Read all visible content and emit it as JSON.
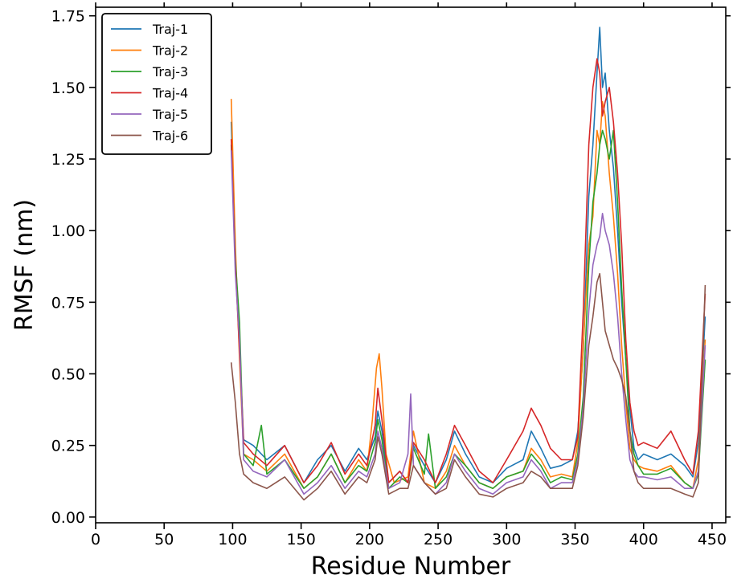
{
  "chart_data": {
    "type": "line",
    "title": "",
    "xlabel": "Residue Number",
    "ylabel": "RMSF (nm)",
    "xlim": [
      0,
      460
    ],
    "ylim": [
      -0.02,
      1.78
    ],
    "xticks": [
      0,
      50,
      100,
      150,
      200,
      250,
      300,
      350,
      400,
      450
    ],
    "yticks": [
      0.0,
      0.25,
      0.5,
      0.75,
      1.0,
      1.25,
      1.5,
      1.75
    ],
    "xtick_labels": [
      "0",
      "50",
      "100",
      "150",
      "200",
      "250",
      "300",
      "350",
      "400",
      "450"
    ],
    "ytick_labels": [
      "0.00",
      "0.25",
      "0.50",
      "0.75",
      "1.00",
      "1.25",
      "1.50",
      "1.75"
    ],
    "grid": false,
    "legend_position": "top-left",
    "series": [
      {
        "name": "Traj-1",
        "color": "#1f77b4",
        "x": [
          99,
          102,
          105,
          108,
          115,
          125,
          138,
          152,
          162,
          172,
          182,
          192,
          198,
          204,
          206,
          209,
          214,
          222,
          228,
          232,
          240,
          248,
          256,
          262,
          270,
          280,
          290,
          300,
          312,
          318,
          325,
          332,
          340,
          348,
          352,
          356,
          360,
          363,
          366,
          368,
          370,
          372,
          375,
          378,
          381,
          384,
          387,
          390,
          393,
          396,
          400,
          410,
          420,
          430,
          436,
          440,
          445
        ],
        "y": [
          1.38,
          0.9,
          0.6,
          0.27,
          0.25,
          0.2,
          0.25,
          0.12,
          0.2,
          0.25,
          0.16,
          0.24,
          0.2,
          0.28,
          0.37,
          0.3,
          0.12,
          0.16,
          0.12,
          0.25,
          0.18,
          0.12,
          0.2,
          0.3,
          0.22,
          0.14,
          0.12,
          0.17,
          0.2,
          0.3,
          0.24,
          0.17,
          0.18,
          0.2,
          0.3,
          0.58,
          1.12,
          1.3,
          1.55,
          1.71,
          1.5,
          1.55,
          1.35,
          1.22,
          1.0,
          0.75,
          0.55,
          0.38,
          0.24,
          0.2,
          0.22,
          0.2,
          0.22,
          0.18,
          0.14,
          0.26,
          0.7
        ]
      },
      {
        "name": "Traj-2",
        "color": "#ff7f0e",
        "x": [
          99,
          102,
          105,
          108,
          115,
          125,
          138,
          152,
          162,
          172,
          182,
          192,
          198,
          202,
          205,
          207,
          209,
          212,
          218,
          228,
          232,
          240,
          248,
          256,
          262,
          270,
          280,
          290,
          300,
          312,
          318,
          325,
          332,
          340,
          348,
          352,
          356,
          360,
          363,
          366,
          368,
          370,
          372,
          375,
          378,
          381,
          384,
          387,
          390,
          393,
          396,
          400,
          410,
          420,
          430,
          436,
          440,
          445
        ],
        "y": [
          1.46,
          0.95,
          0.55,
          0.22,
          0.2,
          0.16,
          0.22,
          0.1,
          0.14,
          0.22,
          0.12,
          0.2,
          0.16,
          0.34,
          0.52,
          0.57,
          0.45,
          0.22,
          0.12,
          0.14,
          0.3,
          0.12,
          0.1,
          0.16,
          0.25,
          0.18,
          0.12,
          0.1,
          0.14,
          0.16,
          0.24,
          0.2,
          0.14,
          0.15,
          0.14,
          0.26,
          0.6,
          0.95,
          1.05,
          1.35,
          1.3,
          1.45,
          1.4,
          1.2,
          1.05,
          0.85,
          0.6,
          0.4,
          0.24,
          0.2,
          0.18,
          0.17,
          0.16,
          0.18,
          0.12,
          0.1,
          0.2,
          0.62
        ]
      },
      {
        "name": "Traj-3",
        "color": "#2ca02c",
        "x": [
          99,
          102,
          105,
          108,
          115,
          121,
          125,
          138,
          152,
          162,
          172,
          182,
          192,
          198,
          204,
          206,
          209,
          214,
          222,
          228,
          232,
          240,
          243,
          248,
          256,
          262,
          270,
          280,
          290,
          300,
          312,
          318,
          325,
          332,
          340,
          348,
          352,
          356,
          360,
          363,
          366,
          368,
          370,
          372,
          375,
          378,
          381,
          384,
          387,
          390,
          393,
          396,
          400,
          410,
          420,
          430,
          436,
          440,
          445
        ],
        "y": [
          1.3,
          0.9,
          0.68,
          0.22,
          0.18,
          0.32,
          0.15,
          0.2,
          0.1,
          0.14,
          0.22,
          0.12,
          0.18,
          0.16,
          0.26,
          0.34,
          0.27,
          0.1,
          0.14,
          0.12,
          0.24,
          0.15,
          0.29,
          0.1,
          0.14,
          0.22,
          0.18,
          0.12,
          0.1,
          0.14,
          0.16,
          0.22,
          0.18,
          0.12,
          0.14,
          0.13,
          0.22,
          0.42,
          0.88,
          1.1,
          1.2,
          1.3,
          1.35,
          1.32,
          1.25,
          1.35,
          1.1,
          0.8,
          0.55,
          0.3,
          0.22,
          0.18,
          0.15,
          0.15,
          0.17,
          0.12,
          0.1,
          0.15,
          0.55
        ]
      },
      {
        "name": "Traj-4",
        "color": "#d62728",
        "x": [
          99,
          102,
          105,
          108,
          115,
          125,
          138,
          152,
          162,
          172,
          182,
          192,
          198,
          204,
          206,
          209,
          214,
          222,
          228,
          232,
          240,
          248,
          256,
          262,
          270,
          280,
          290,
          300,
          312,
          318,
          325,
          332,
          340,
          348,
          352,
          356,
          360,
          363,
          366,
          368,
          370,
          372,
          375,
          378,
          381,
          384,
          387,
          390,
          393,
          396,
          400,
          410,
          420,
          430,
          436,
          440,
          445
        ],
        "y": [
          1.32,
          0.88,
          0.58,
          0.26,
          0.22,
          0.18,
          0.25,
          0.12,
          0.18,
          0.26,
          0.15,
          0.22,
          0.18,
          0.32,
          0.45,
          0.34,
          0.12,
          0.16,
          0.12,
          0.26,
          0.2,
          0.12,
          0.22,
          0.32,
          0.25,
          0.16,
          0.12,
          0.2,
          0.3,
          0.38,
          0.32,
          0.24,
          0.2,
          0.2,
          0.28,
          0.72,
          1.3,
          1.5,
          1.6,
          1.55,
          1.4,
          1.45,
          1.5,
          1.38,
          1.2,
          0.95,
          0.62,
          0.4,
          0.3,
          0.25,
          0.26,
          0.24,
          0.3,
          0.2,
          0.15,
          0.3,
          0.78
        ]
      },
      {
        "name": "Traj-5",
        "color": "#9467bd",
        "x": [
          99,
          102,
          105,
          108,
          115,
          125,
          138,
          152,
          162,
          172,
          182,
          192,
          198,
          204,
          206,
          209,
          214,
          222,
          228,
          230,
          232,
          240,
          248,
          256,
          262,
          270,
          280,
          290,
          300,
          312,
          318,
          325,
          332,
          340,
          348,
          352,
          356,
          360,
          363,
          366,
          368,
          370,
          372,
          375,
          378,
          381,
          384,
          387,
          390,
          393,
          396,
          400,
          410,
          420,
          430,
          436,
          440,
          445
        ],
        "y": [
          1.28,
          0.85,
          0.62,
          0.2,
          0.16,
          0.14,
          0.2,
          0.08,
          0.12,
          0.18,
          0.1,
          0.16,
          0.14,
          0.22,
          0.3,
          0.24,
          0.1,
          0.12,
          0.22,
          0.43,
          0.18,
          0.12,
          0.08,
          0.12,
          0.22,
          0.16,
          0.1,
          0.08,
          0.12,
          0.14,
          0.2,
          0.16,
          0.1,
          0.12,
          0.12,
          0.2,
          0.38,
          0.72,
          0.88,
          0.95,
          0.98,
          1.06,
          1.0,
          0.95,
          0.85,
          0.7,
          0.5,
          0.34,
          0.2,
          0.16,
          0.14,
          0.14,
          0.13,
          0.14,
          0.1,
          0.1,
          0.16,
          0.6
        ]
      },
      {
        "name": "Traj-6",
        "color": "#8c564b",
        "x": [
          99,
          102,
          105,
          108,
          115,
          125,
          138,
          152,
          162,
          172,
          182,
          192,
          198,
          204,
          206,
          209,
          214,
          222,
          228,
          232,
          240,
          248,
          256,
          262,
          270,
          280,
          290,
          300,
          312,
          318,
          325,
          332,
          340,
          348,
          352,
          356,
          360,
          363,
          366,
          368,
          370,
          372,
          375,
          378,
          381,
          384,
          387,
          390,
          393,
          396,
          400,
          410,
          420,
          430,
          436,
          440,
          445
        ],
        "y": [
          0.54,
          0.4,
          0.22,
          0.15,
          0.12,
          0.1,
          0.14,
          0.06,
          0.1,
          0.16,
          0.08,
          0.14,
          0.12,
          0.2,
          0.28,
          0.22,
          0.08,
          0.1,
          0.1,
          0.18,
          0.12,
          0.08,
          0.1,
          0.2,
          0.14,
          0.08,
          0.07,
          0.1,
          0.12,
          0.16,
          0.14,
          0.1,
          0.1,
          0.1,
          0.18,
          0.35,
          0.6,
          0.7,
          0.82,
          0.85,
          0.75,
          0.65,
          0.6,
          0.55,
          0.52,
          0.48,
          0.42,
          0.3,
          0.16,
          0.12,
          0.1,
          0.1,
          0.1,
          0.08,
          0.07,
          0.12,
          0.81
        ]
      }
    ]
  }
}
